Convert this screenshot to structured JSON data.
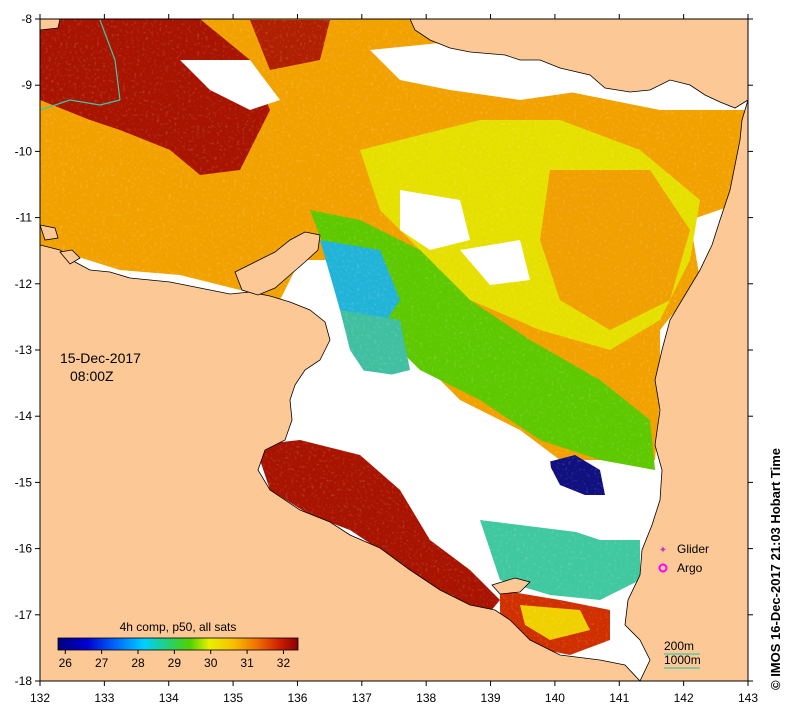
{
  "map": {
    "date": "15-Dec-2017",
    "time": "08:00Z",
    "credit": "© IMOS 16-Dec-2017 21:03 Hobart Time",
    "colorbar_title": "4h comp, p50, all sats",
    "colorbar_ticks": [
      "26",
      "27",
      "28",
      "29",
      "30",
      "31",
      "32"
    ],
    "colorbar_range": [
      25.8,
      32.4
    ],
    "legend": {
      "glider": "Glider",
      "argo": "Argo",
      "glider_color": "#cc33cc",
      "argo_color": "#ff00ff"
    },
    "scale": {
      "line1": "200m",
      "line2": "1000m",
      "color": "#3fc7a8"
    },
    "x_ticks": [
      "132",
      "133",
      "134",
      "135",
      "136",
      "137",
      "138",
      "139",
      "140",
      "141",
      "142",
      "143"
    ],
    "y_ticks": [
      "-8",
      "-9",
      "-10",
      "-11",
      "-12",
      "-13",
      "-14",
      "-15",
      "-16",
      "-17",
      "-18"
    ],
    "colors": {
      "land": "#fcc896",
      "no_data": "#ffffff",
      "coast": "#000000"
    }
  }
}
